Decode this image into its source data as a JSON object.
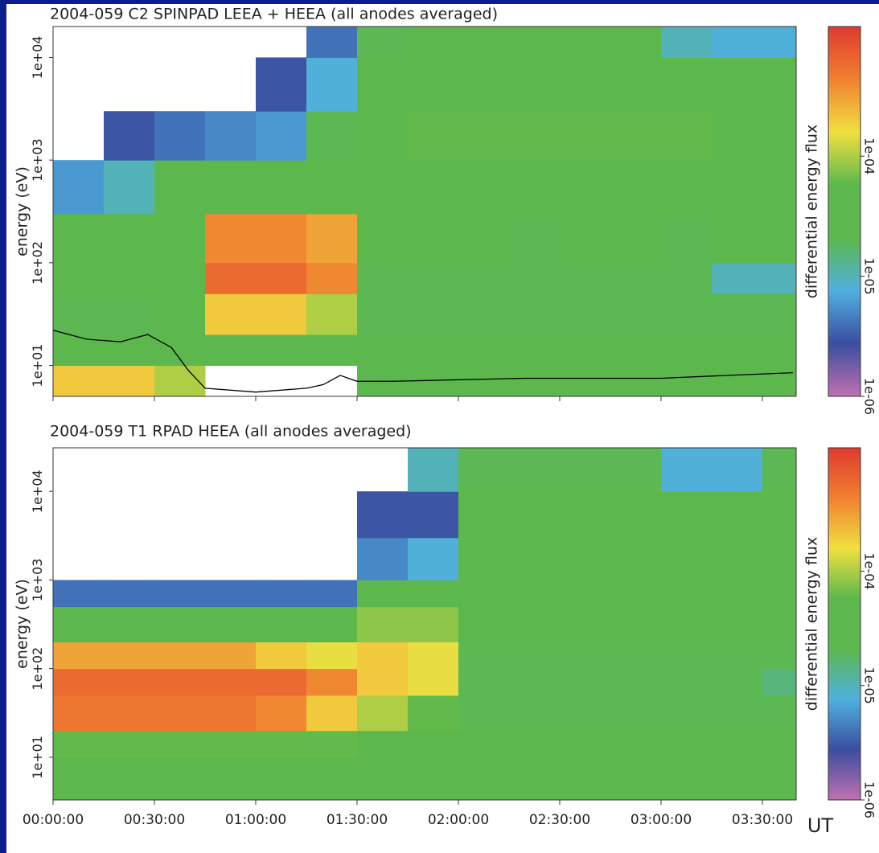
{
  "chart_data": [
    {
      "type": "heatmap",
      "title": "2004-059 C2 SPINPAD LEEA + HEEA (all anodes averaged)",
      "ylabel": "energy (eV)",
      "colorbar_label": "differential energy flux",
      "log_y": true,
      "log_color": true,
      "colormap": [
        "#c070b0",
        "#3a4ea0",
        "#50b0e0",
        "#5cb84c",
        "#5cb84c",
        "#f0e040",
        "#f08030",
        "#e03a30"
      ],
      "xlim": [
        0,
        220
      ],
      "xticks": [
        0,
        30,
        60,
        90,
        120,
        150,
        180,
        210
      ],
      "ylim": [
        5,
        20000
      ],
      "yticks": [
        {
          "value": 10,
          "label": "1e+01"
        },
        {
          "value": 100,
          "label": "1e+02"
        },
        {
          "value": 1000,
          "label": "1e+03"
        },
        {
          "value": 10000,
          "label": "1e+04"
        }
      ],
      "clim": [
        1e-06,
        0.0012
      ],
      "cticks": [
        {
          "value": 1e-06,
          "label": "1e-06"
        },
        {
          "value": 1e-05,
          "label": "1e-05"
        },
        {
          "value": 0.0001,
          "label": "1e-04"
        }
      ],
      "time_bins": [
        0,
        15,
        30,
        45,
        60,
        75,
        90,
        105,
        120,
        135,
        150,
        165,
        180,
        195,
        210,
        220
      ],
      "energy_bins": [
        5,
        10,
        20,
        50,
        100,
        300,
        1000,
        3000,
        10000,
        20000
      ],
      "values": [
        [
          0.0002,
          0.0002,
          0.0001,
          null,
          null,
          null,
          5e-05,
          3e-05,
          3e-05,
          3e-05,
          3e-05,
          3e-05,
          3e-05,
          3e-05,
          5e-05
        ],
        [
          3e-05,
          3e-05,
          4e-05,
          5e-05,
          5e-05,
          4e-05,
          3e-05,
          3e-05,
          3e-05,
          3e-05,
          3e-05,
          3e-05,
          3e-05,
          3e-05,
          3e-05
        ],
        [
          2e-05,
          2e-05,
          3e-05,
          0.0002,
          0.0002,
          0.0001,
          2e-05,
          2e-05,
          2e-05,
          2e-05,
          2e-05,
          2e-05,
          2e-05,
          2e-05,
          2e-05
        ],
        [
          3e-05,
          3e-05,
          3e-05,
          0.0006,
          0.0006,
          0.0004,
          2e-05,
          2e-05,
          2e-05,
          2e-05,
          2e-05,
          2e-05,
          2e-05,
          1e-05,
          1e-05
        ],
        [
          4e-05,
          3e-05,
          3e-05,
          0.0004,
          0.0004,
          0.0003,
          3e-05,
          3e-05,
          3e-05,
          2e-05,
          3e-05,
          3e-05,
          2e-05,
          3e-05,
          3e-05
        ],
        [
          6e-06,
          1e-05,
          3e-05,
          4e-05,
          4e-05,
          4e-05,
          4e-05,
          4e-05,
          4e-05,
          4e-05,
          4e-05,
          4e-05,
          4e-05,
          4e-05,
          4e-05
        ],
        [
          null,
          3e-06,
          4e-06,
          5e-06,
          6e-06,
          2e-05,
          5e-05,
          6e-05,
          6e-05,
          6e-05,
          6e-05,
          6e-05,
          6e-05,
          5e-05,
          5e-05
        ],
        [
          null,
          null,
          null,
          null,
          3e-06,
          8e-06,
          4e-05,
          5e-05,
          5e-05,
          5e-05,
          5e-05,
          5e-05,
          5e-05,
          4e-05,
          4e-05
        ],
        [
          null,
          null,
          null,
          null,
          null,
          4e-06,
          2e-05,
          3e-05,
          3e-05,
          3e-05,
          3e-05,
          3e-05,
          1e-05,
          8e-06,
          8e-06
        ]
      ],
      "line": {
        "color": "#000000",
        "x": [
          0,
          10,
          20,
          28,
          35,
          40,
          45,
          60,
          75,
          80,
          85,
          90,
          100,
          140,
          180,
          200,
          219
        ],
        "values": [
          22,
          18,
          17,
          20,
          15,
          9,
          6,
          5.5,
          6,
          6.5,
          8,
          7,
          7,
          7.5,
          7.5,
          8,
          8.5
        ]
      }
    },
    {
      "type": "heatmap",
      "title": "2004-059 T1 RPAD HEEA (all anodes averaged)",
      "ylabel": "energy (eV)",
      "colorbar_label": "differential energy flux",
      "xlabel": "UT",
      "log_y": true,
      "log_color": true,
      "colormap": [
        "#c070b0",
        "#3a4ea0",
        "#50b0e0",
        "#5cb84c",
        "#5cb84c",
        "#f0e040",
        "#f08030",
        "#e03a30"
      ],
      "xlim": [
        0,
        220
      ],
      "xticks": [
        {
          "value": 0,
          "label": "00:00:00"
        },
        {
          "value": 30,
          "label": "00:30:00"
        },
        {
          "value": 60,
          "label": "01:00:00"
        },
        {
          "value": 90,
          "label": "01:30:00"
        },
        {
          "value": 120,
          "label": "02:00:00"
        },
        {
          "value": 150,
          "label": "02:30:00"
        },
        {
          "value": 180,
          "label": "03:00:00"
        },
        {
          "value": 210,
          "label": "03:30:00"
        }
      ],
      "ylim": [
        3.3,
        31000
      ],
      "yticks": [
        {
          "value": 10,
          "label": "1e+01"
        },
        {
          "value": 100,
          "label": "1e+02"
        },
        {
          "value": 1000,
          "label": "1e+03"
        },
        {
          "value": 10000,
          "label": "1e+04"
        }
      ],
      "clim": [
        1e-06,
        0.0012
      ],
      "cticks": [
        {
          "value": 1e-06,
          "label": "1e-06"
        },
        {
          "value": 1e-05,
          "label": "1e-05"
        },
        {
          "value": 0.0001,
          "label": "1e-04"
        }
      ],
      "time_bins": [
        0,
        15,
        30,
        45,
        60,
        75,
        90,
        105,
        120,
        135,
        150,
        165,
        180,
        195,
        210,
        220
      ],
      "energy_bins": [
        3.3,
        10,
        20,
        50,
        100,
        200,
        500,
        1000,
        3000,
        10000,
        31000
      ],
      "values": [
        [
          4e-05,
          4e-05,
          4e-05,
          4e-05,
          4e-05,
          4e-05,
          4e-05,
          4e-05,
          4e-05,
          4e-05,
          4e-05,
          4e-05,
          4e-05,
          4e-05,
          4e-05
        ],
        [
          6e-05,
          6e-05,
          6e-05,
          6e-05,
          6e-05,
          6e-05,
          4e-05,
          3e-05,
          3e-05,
          3e-05,
          3e-05,
          3e-05,
          3e-05,
          3e-05,
          3e-05
        ],
        [
          0.0005,
          0.0005,
          0.0005,
          0.0005,
          0.0004,
          0.0002,
          0.0001,
          6e-05,
          2e-05,
          2e-05,
          2e-05,
          2e-05,
          2e-05,
          2e-05,
          2e-05
        ],
        [
          0.0006,
          0.0006,
          0.0006,
          0.0006,
          0.0006,
          0.0004,
          0.0002,
          0.00015,
          2e-05,
          2e-05,
          2e-05,
          2e-05,
          2e-05,
          2e-05,
          1.5e-05
        ],
        [
          0.0003,
          0.0003,
          0.0003,
          0.0003,
          0.0002,
          0.00015,
          0.0002,
          0.00015,
          2e-05,
          2e-05,
          2e-05,
          2e-05,
          2e-05,
          2e-05,
          2e-05
        ],
        [
          4e-05,
          4e-05,
          4e-05,
          4e-05,
          4e-05,
          4e-05,
          8e-05,
          8e-05,
          2.5e-05,
          2.5e-05,
          2.5e-05,
          2.5e-05,
          2.5e-05,
          2.5e-05,
          2.5e-05
        ],
        [
          4e-06,
          4e-06,
          4e-06,
          4e-06,
          4e-06,
          4e-06,
          3e-05,
          3e-05,
          3e-05,
          3e-05,
          3e-05,
          3e-05,
          3e-05,
          3e-05,
          3e-05
        ],
        [
          null,
          null,
          null,
          null,
          null,
          null,
          5e-06,
          8e-06,
          4e-05,
          4e-05,
          4e-05,
          4e-05,
          4e-05,
          4e-05,
          4e-05
        ],
        [
          null,
          null,
          null,
          null,
          null,
          null,
          3e-06,
          3e-06,
          4e-05,
          4e-05,
          4e-05,
          4e-05,
          4e-05,
          4e-05,
          4e-05
        ],
        [
          null,
          null,
          null,
          null,
          null,
          null,
          null,
          1e-05,
          2e-05,
          2e-05,
          2e-05,
          2e-05,
          8e-06,
          8e-06,
          2e-05
        ]
      ]
    }
  ]
}
